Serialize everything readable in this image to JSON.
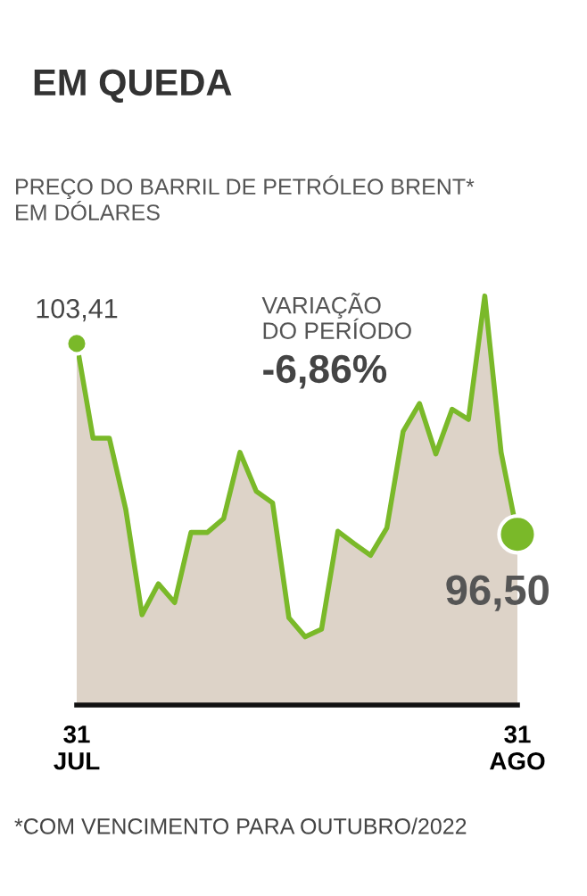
{
  "chart_data": {
    "type": "area",
    "title": "EM QUEDA",
    "subtitle": "PREÇO DO BARRIL DE PETRÓLEO BRENT*\nEM DÓLARES",
    "categories": [
      "31\nJUL",
      null,
      null,
      null,
      null,
      null,
      null,
      null,
      null,
      null,
      null,
      null,
      null,
      null,
      null,
      null,
      null,
      null,
      null,
      null,
      null,
      null,
      null,
      null,
      null,
      null,
      null,
      "31\nAGO"
    ],
    "series": [
      {
        "color": "#7ab929",
        "values": [
          103.41,
          99.98,
          99.98,
          97.42,
          93.59,
          94.71,
          94.03,
          96.57,
          96.57,
          97.07,
          99.47,
          98.06,
          97.64,
          93.48,
          92.79,
          93.07,
          96.61,
          96.16,
          95.74,
          96.73,
          100.23,
          101.24,
          99.41,
          101.03,
          100.66,
          105.13,
          99.47,
          96.5
        ],
        "value_labels": [
          "103,41",
          null,
          null,
          null,
          null,
          null,
          null,
          null,
          null,
          null,
          null,
          null,
          null,
          null,
          null,
          null,
          null,
          null,
          null,
          null,
          null,
          null,
          null,
          null,
          null,
          null,
          null,
          "96,50"
        ]
      }
    ],
    "tick_labels": "x",
    "grid": false,
    "legend": false,
    "annotations": [
      "VARIAÇÃO\nDO PERÍODO",
      "-6,86%",
      "*COM VENCIMENTO PARA OUTUBRO/2022"
    ]
  }
}
